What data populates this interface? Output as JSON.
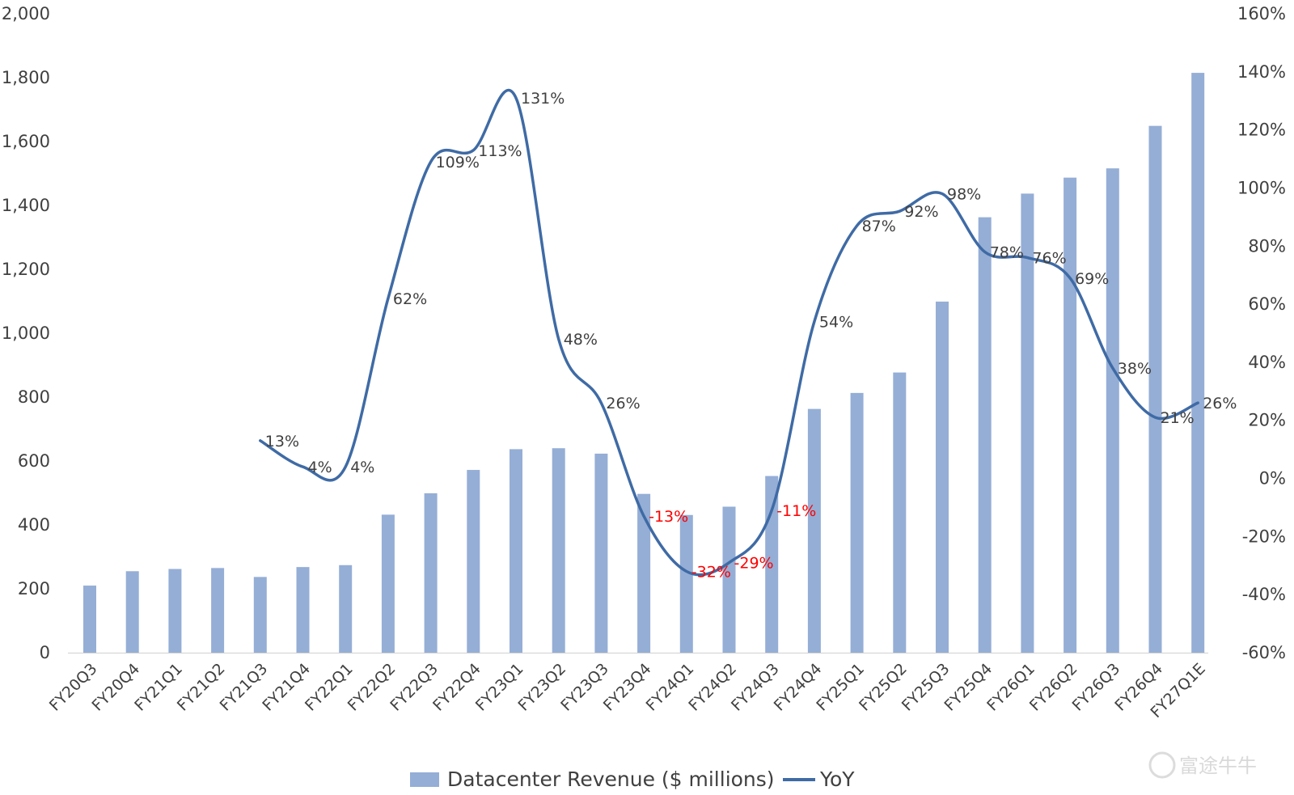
{
  "chart_data": {
    "type": "bar",
    "categories": [
      "FY20Q3",
      "FY20Q4",
      "FY21Q1",
      "FY21Q2",
      "FY21Q3",
      "FY21Q4",
      "FY22Q1",
      "FY22Q2",
      "FY22Q3",
      "FY22Q4",
      "FY23Q1",
      "FY23Q2",
      "FY23Q3",
      "FY23Q4",
      "FY24Q1",
      "FY24Q2",
      "FY24Q3",
      "FY24Q4",
      "FY25Q1",
      "FY25Q2",
      "FY25Q3",
      "FY25Q4",
      "FY26Q1",
      "FY26Q2",
      "FY26Q3",
      "FY26Q4",
      "FY27Q1E"
    ],
    "series": [
      {
        "name": "Datacenter Revenue ($ millions)",
        "type": "bar",
        "axis": "left",
        "color": "#95aed6",
        "values": [
          210,
          255,
          262,
          265,
          237,
          268,
          274,
          432,
          499,
          572,
          637,
          640,
          623,
          497,
          431,
          457,
          553,
          763,
          813,
          877,
          1099,
          1363,
          1437,
          1487,
          1516,
          1649,
          1815
        ]
      },
      {
        "name": "YoY",
        "type": "line",
        "axis": "right",
        "color": "#3f6ba5",
        "values": [
          null,
          null,
          null,
          null,
          13,
          4,
          4,
          62,
          109,
          113,
          131,
          48,
          26,
          -13,
          -32,
          -29,
          -11,
          54,
          87,
          92,
          98,
          78,
          76,
          69,
          38,
          21,
          26
        ],
        "labels": [
          "",
          "",
          "",
          "",
          "13%",
          "4%",
          "4%",
          "62%",
          "109%",
          "113%",
          "131%",
          "48%",
          "26%",
          "-13%",
          "-32%",
          "-29%",
          "-11%",
          "54%",
          "87%",
          "92%",
          "98%",
          "78%",
          "76%",
          "69%",
          "38%",
          "21%",
          "26%"
        ]
      }
    ],
    "y_left": {
      "ylim": [
        0,
        2000
      ],
      "ticks": [
        0,
        200,
        400,
        600,
        800,
        1000,
        1200,
        1400,
        1600,
        1800,
        2000
      ],
      "tick_labels": [
        "0",
        "200",
        "400",
        "600",
        "800",
        "1,000",
        "1,200",
        "1,400",
        "1,600",
        "1,800",
        "2,000"
      ]
    },
    "y_right": {
      "ylim": [
        -60,
        160
      ],
      "ticks": [
        -60,
        -40,
        -20,
        0,
        20,
        40,
        60,
        80,
        100,
        120,
        140,
        160
      ],
      "tick_labels": [
        "-60%",
        "-40%",
        "-20%",
        "0%",
        "20%",
        "40%",
        "60%",
        "80%",
        "100%",
        "120%",
        "140%",
        "160%"
      ]
    },
    "grid": false,
    "legend": "bottom-center",
    "negative_label_color": "#ff0000",
    "positive_label_color": "#404040",
    "watermark": "富途牛牛"
  }
}
